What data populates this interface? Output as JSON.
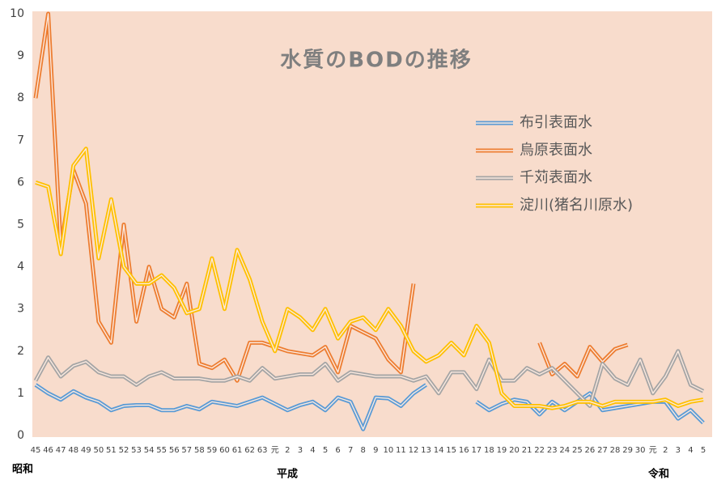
{
  "chart_data": {
    "type": "line",
    "title": "水質のBODの推移",
    "categories": [
      "45",
      "46",
      "47",
      "48",
      "49",
      "50",
      "51",
      "52",
      "53",
      "54",
      "55",
      "56",
      "57",
      "58",
      "59",
      "60",
      "61",
      "62",
      "63",
      "元",
      "2",
      "3",
      "4",
      "5",
      "6",
      "7",
      "8",
      "9",
      "10",
      "11",
      "12",
      "13",
      "14",
      "15",
      "16",
      "17",
      "18",
      "19",
      "20",
      "21",
      "22",
      "23",
      "24",
      "25",
      "26",
      "27",
      "28",
      "29",
      "30",
      "元",
      "2",
      "3",
      "4",
      "5"
    ],
    "era_labels": [
      "昭和",
      "平成",
      "令和"
    ],
    "series": [
      {
        "name": "布引表面水",
        "color": "#5b9bd5",
        "values": [
          1.2,
          1.0,
          0.85,
          1.05,
          0.9,
          0.8,
          0.6,
          0.7,
          0.72,
          0.72,
          0.6,
          0.6,
          0.7,
          0.62,
          0.8,
          0.75,
          0.7,
          0.8,
          0.9,
          0.75,
          0.6,
          0.72,
          0.8,
          0.6,
          0.9,
          0.8,
          0.15,
          0.9,
          0.88,
          0.7,
          1.0,
          1.2,
          null,
          null,
          null,
          0.8,
          0.6,
          0.75,
          0.85,
          0.8,
          0.5,
          0.8,
          0.6,
          0.8,
          1.0,
          0.6,
          0.65,
          0.7,
          0.75,
          0.8,
          0.8,
          0.4,
          0.6,
          0.3
        ]
      },
      {
        "name": "烏原表面水",
        "color": "#ed7d31",
        "values": [
          8.0,
          10.0,
          4.5,
          6.3,
          5.5,
          2.7,
          2.2,
          5.0,
          2.7,
          4.0,
          3.0,
          2.8,
          3.6,
          1.7,
          1.6,
          1.8,
          1.3,
          2.2,
          2.2,
          2.1,
          2.0,
          1.95,
          1.9,
          2.1,
          1.5,
          2.6,
          2.45,
          2.3,
          1.8,
          1.5,
          3.6,
          null,
          null,
          null,
          null,
          null,
          null,
          null,
          null,
          null,
          2.2,
          1.45,
          1.7,
          1.4,
          2.1,
          1.75,
          2.05,
          2.15,
          null,
          null,
          null,
          null,
          null,
          null
        ]
      },
      {
        "name": "千苅表面水",
        "color": "#a5a5a5",
        "values": [
          1.3,
          1.85,
          1.4,
          1.65,
          1.75,
          1.5,
          1.4,
          1.4,
          1.2,
          1.4,
          1.5,
          1.35,
          1.35,
          1.35,
          1.3,
          1.3,
          1.4,
          1.3,
          1.6,
          1.35,
          1.4,
          1.45,
          1.45,
          1.7,
          1.3,
          1.5,
          1.45,
          1.4,
          1.4,
          1.4,
          1.3,
          1.4,
          1.0,
          1.5,
          1.5,
          1.1,
          1.8,
          1.3,
          1.3,
          1.6,
          1.45,
          1.6,
          1.3,
          1.0,
          0.7,
          1.7,
          1.35,
          1.2,
          1.8,
          1.0,
          1.4,
          2.0,
          1.2,
          1.05
        ]
      },
      {
        "name": "淀川(猪名川原水)",
        "color": "#ffc000",
        "values": [
          6.0,
          5.9,
          4.3,
          6.4,
          6.8,
          4.2,
          5.6,
          4.0,
          3.6,
          3.6,
          3.8,
          3.5,
          2.9,
          3.0,
          4.2,
          3.0,
          4.4,
          3.7,
          2.7,
          2.0,
          3.0,
          2.8,
          2.5,
          3.0,
          2.3,
          2.7,
          2.8,
          2.5,
          3.0,
          2.6,
          2.0,
          1.75,
          1.9,
          2.2,
          1.9,
          2.6,
          2.2,
          1.0,
          0.7,
          0.7,
          0.7,
          0.65,
          0.7,
          0.8,
          0.8,
          0.7,
          0.8,
          0.8,
          0.8,
          0.8,
          0.85,
          0.7,
          0.8,
          0.85
        ]
      }
    ],
    "ylim": [
      0,
      10
    ],
    "yticks": [
      0,
      1,
      2,
      3,
      4,
      5,
      6,
      7,
      8,
      9,
      10
    ],
    "grid": false,
    "legend": "upper right",
    "background": "#f8dccc"
  }
}
